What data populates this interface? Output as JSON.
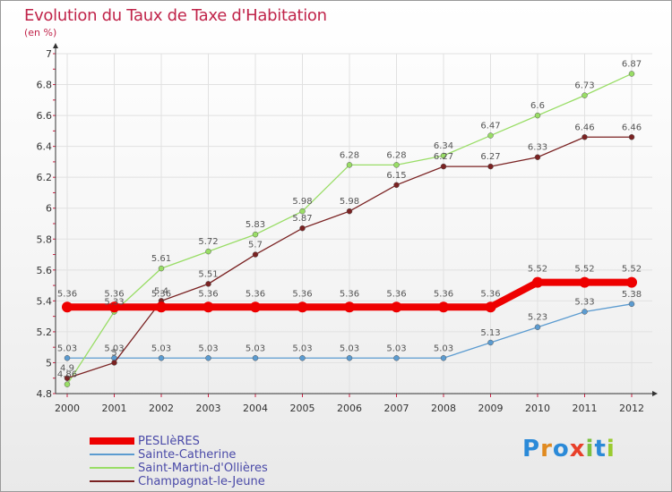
{
  "header": {
    "title": "Evolution du Taux de Taxe d'Habitation",
    "unit": "(en %)"
  },
  "brand": {
    "letters": [
      "P",
      "r",
      "o",
      "x",
      "i",
      "t",
      "i"
    ],
    "colors": [
      "#2b8ad8",
      "#e08a20",
      "#2b8ad8",
      "#e8402a",
      "#7cc040",
      "#2b8ad8",
      "#9acb30"
    ]
  },
  "chart_data": {
    "type": "line",
    "x": [
      2000,
      2001,
      2002,
      2003,
      2004,
      2005,
      2006,
      2007,
      2008,
      2009,
      2010,
      2011,
      2012
    ],
    "ylim": [
      4.8,
      7
    ],
    "yticks": [
      "4.8",
      "5",
      "5.2",
      "5.4",
      "5.6",
      "5.8",
      "6",
      "6.2",
      "6.4",
      "6.6",
      "6.8",
      "7"
    ],
    "xticks": [
      "2000",
      "2001",
      "2002",
      "2003",
      "2004",
      "2005",
      "2006",
      "2007",
      "2008",
      "2009",
      "2010",
      "2011",
      "2012"
    ],
    "grid": true,
    "series": [
      {
        "name": "PESLIèRES",
        "color": "#ee0000",
        "values": [
          5.36,
          5.36,
          5.36,
          5.36,
          5.36,
          5.36,
          5.36,
          5.36,
          5.36,
          5.36,
          5.52,
          5.52,
          5.52
        ],
        "labels": [
          "5.36",
          "5.36",
          "5.36",
          "5.36",
          "5.36",
          "5.36",
          "5.36",
          "5.36",
          "5.36",
          "5.36",
          "5.52",
          "5.52",
          "5.52"
        ]
      },
      {
        "name": "Sainte-Catherine",
        "color": "#5b9bd0",
        "values": [
          5.03,
          5.03,
          5.03,
          5.03,
          5.03,
          5.03,
          5.03,
          5.03,
          5.03,
          5.13,
          5.23,
          5.33,
          5.38
        ],
        "labels": [
          "5.03",
          "5.03",
          "5.03",
          "5.03",
          "5.03",
          "5.03",
          "5.03",
          "5.03",
          "5.03",
          "5.13",
          "5.23",
          "5.33",
          "5.38"
        ]
      },
      {
        "name": "Saint-Martin-d'Ollières",
        "color": "#99dd66",
        "values": [
          4.86,
          5.33,
          5.61,
          5.72,
          5.83,
          5.98,
          6.28,
          6.28,
          6.34,
          6.47,
          6.6,
          6.73,
          6.87
        ],
        "labels": [
          "4.86",
          "5.33",
          "5.61",
          "5.72",
          "5.83",
          "5.98",
          "6.28",
          "6.28",
          "6.34",
          "6.47",
          "6.6",
          "6.73",
          "6.87"
        ]
      },
      {
        "name": "Champagnat-le-Jeune",
        "color": "#7a2222",
        "values": [
          4.9,
          5.0,
          5.4,
          5.51,
          5.7,
          5.87,
          5.98,
          6.15,
          6.27,
          6.27,
          6.33,
          6.46,
          6.46
        ],
        "labels": [
          "4.9",
          "5",
          "5.4",
          "5.51",
          "5.7",
          "5.87",
          "5.98",
          "6.15",
          "6.27",
          "6.27",
          "6.33",
          "6.46",
          "6.46"
        ]
      }
    ]
  }
}
